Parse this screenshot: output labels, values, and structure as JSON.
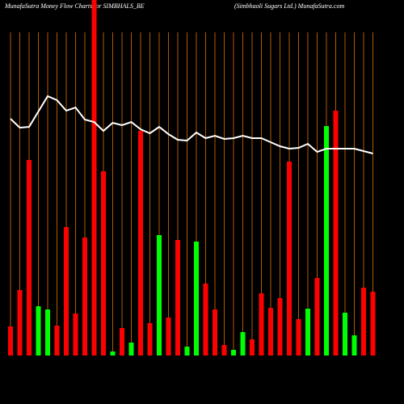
{
  "chart_data": {
    "type": "bar",
    "title": "MunafaSutra  Money Flow  Charts for SIMBHALS_BE",
    "subtitle": "(Simbhaoli   Sugars Ltd.) MunafaSutra.com",
    "categories": [
      null,
      null,
      null,
      null,
      null,
      null,
      null,
      null,
      null,
      null,
      null,
      null,
      null,
      null,
      null,
      null,
      null,
      null,
      null,
      null,
      null,
      null,
      null,
      null,
      null,
      null,
      null,
      null,
      null,
      null,
      null,
      null,
      null,
      null,
      null,
      null,
      null,
      null,
      null,
      null
    ],
    "series": [
      {
        "values": [
          36,
          81,
          242,
          61,
          57,
          37,
          159,
          52,
          146,
          445,
          228,
          5,
          34,
          16,
          278,
          40,
          149,
          47,
          143,
          11,
          141,
          89,
          57,
          13,
          7,
          29,
          20,
          77,
          59,
          71,
          240,
          45,
          58,
          96,
          284,
          303,
          53,
          25,
          84,
          79
        ],
        "colors": [
          "#ff0000",
          "#ff0000",
          "#ff0000",
          "#00ff00",
          "#00ff00",
          "#ff0000",
          "#ff0000",
          "#ff0000",
          "#ff0000",
          "#ff0000",
          "#ff0000",
          "#00ff00",
          "#ff0000",
          "#00ff00",
          "#ff0000",
          "#ff0000",
          "#00ff00",
          "#ff0000",
          "#ff0000",
          "#00ff00",
          "#00ff00",
          "#ff0000",
          "#ff0000",
          "#ff0000",
          "#00ff00",
          "#00ff00",
          "#ff0000",
          "#ff0000",
          "#ff0000",
          "#ff0000",
          "#ff0000",
          "#ff0000",
          "#00ff00",
          "#ff0000",
          "#00ff00",
          "#ff0000",
          "#00ff00",
          "#00ff00",
          "#ff0000",
          "#ff0000"
        ]
      },
      {
        "type": "line",
        "color": "#ffffff",
        "values": [
          293,
          282,
          283,
          302,
          321,
          316,
          303,
          307,
          292,
          289,
          278,
          288,
          285,
          289,
          280,
          275,
          283,
          274,
          267,
          266,
          276,
          269,
          272,
          268,
          269,
          272,
          269,
          269,
          264,
          259,
          256,
          257,
          262,
          252,
          256,
          256,
          256,
          256,
          253,
          250
        ]
      }
    ],
    "ylim": [
      0,
      440
    ],
    "grid_color": "#b35900"
  }
}
